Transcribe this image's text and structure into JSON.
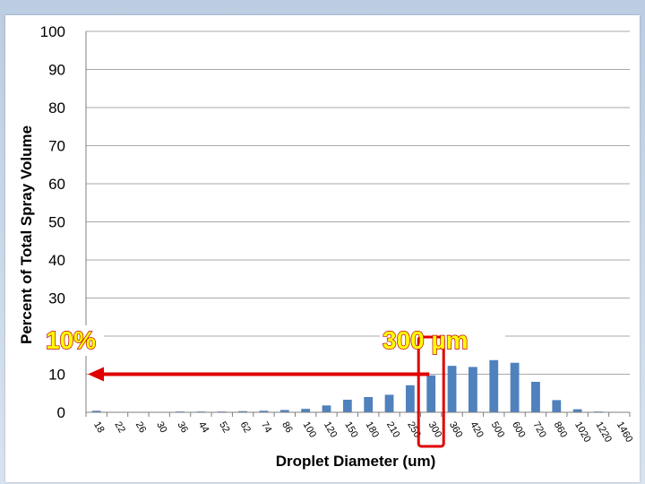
{
  "chart_data": {
    "type": "bar",
    "title": "",
    "xlabel": "Droplet Diameter (um)",
    "ylabel": "Percent of Total Spray Volume",
    "ylim": [
      0,
      100
    ],
    "yticks": [
      0,
      10,
      30,
      40,
      50,
      60,
      70,
      80,
      90,
      100
    ],
    "grid": true,
    "legend": "none",
    "categories": [
      "18",
      "22",
      "26",
      "30",
      "36",
      "44",
      "52",
      "62",
      "74",
      "86",
      "100",
      "120",
      "150",
      "180",
      "210",
      "250",
      "300",
      "360",
      "420",
      "500",
      "600",
      "720",
      "860",
      "1020",
      "1220",
      "1460"
    ],
    "values": [
      0.4,
      0.1,
      0.1,
      0.1,
      0.2,
      0.2,
      0.2,
      0.3,
      0.4,
      0.6,
      0.9,
      1.8,
      3.3,
      4.0,
      4.6,
      7.1,
      9.7,
      12.2,
      11.9,
      13.7,
      13.0,
      8.0,
      3.2,
      0.8,
      0.2,
      0.1
    ],
    "bar_color": "#4f81bd",
    "annotations": [
      {
        "text": "10%",
        "refers_to_y": 10
      },
      {
        "text": "300 µm",
        "refers_to_category": "300"
      }
    ],
    "annotation_colors": {
      "text_fill": "#ffff00",
      "outline": "#c00000",
      "arrow": "#e00000"
    }
  }
}
